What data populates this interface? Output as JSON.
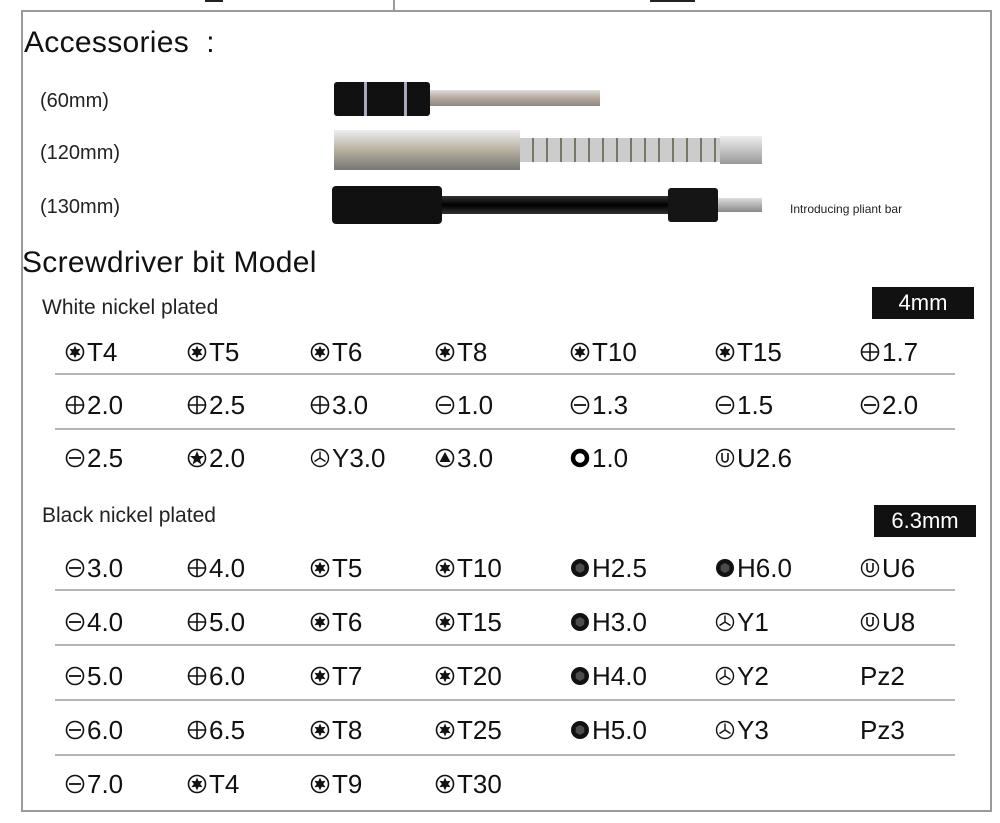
{
  "accessories": {
    "title": "Accessories  :",
    "items": [
      {
        "label": "(60mm)"
      },
      {
        "label": "(120mm)"
      },
      {
        "label": "(130mm)",
        "note": "Introducing pliant bar"
      }
    ]
  },
  "bits": {
    "title": "Screwdriver bit Model",
    "white": {
      "label": "White nickel plated",
      "size": "4mm",
      "rows": [
        [
          {
            "icon": "torx",
            "label": "T4"
          },
          {
            "icon": "torx",
            "label": "T5"
          },
          {
            "icon": "torx",
            "label": "T6"
          },
          {
            "icon": "torx",
            "label": "T8"
          },
          {
            "icon": "torx",
            "label": "T10"
          },
          {
            "icon": "torx",
            "label": "T15"
          },
          {
            "icon": "phillips",
            "label": "1.7"
          }
        ],
        [
          {
            "icon": "phillips",
            "label": "2.0"
          },
          {
            "icon": "phillips",
            "label": "2.5"
          },
          {
            "icon": "phillips",
            "label": "3.0"
          },
          {
            "icon": "slot",
            "label": "1.0"
          },
          {
            "icon": "slot",
            "label": "1.3"
          },
          {
            "icon": "slot",
            "label": "1.5"
          },
          {
            "icon": "slot",
            "label": "2.0"
          }
        ],
        [
          {
            "icon": "slot",
            "label": "2.5"
          },
          {
            "icon": "pentalobe",
            "label": "2.0"
          },
          {
            "icon": "triwing",
            "label": "Y3.0"
          },
          {
            "icon": "triangle",
            "label": "3.0"
          },
          {
            "icon": "ring",
            "label": "1.0"
          },
          {
            "icon": "u",
            "label": "U2.6"
          }
        ]
      ]
    },
    "black": {
      "label": "Black nickel plated",
      "size": "6.3mm",
      "rows": [
        [
          {
            "icon": "slot",
            "label": "3.0"
          },
          {
            "icon": "phillips",
            "label": "4.0"
          },
          {
            "icon": "torx",
            "label": "T5"
          },
          {
            "icon": "torx",
            "label": "T10"
          },
          {
            "icon": "hex",
            "label": "H2.5"
          },
          {
            "icon": "hex",
            "label": "H6.0"
          },
          {
            "icon": "u",
            "label": "U6"
          }
        ],
        [
          {
            "icon": "slot",
            "label": "4.0"
          },
          {
            "icon": "phillips",
            "label": "5.0"
          },
          {
            "icon": "torx",
            "label": "T6"
          },
          {
            "icon": "torx",
            "label": "T15"
          },
          {
            "icon": "hex",
            "label": "H3.0"
          },
          {
            "icon": "triwing",
            "label": "Y1"
          },
          {
            "icon": "u",
            "label": "U8"
          }
        ],
        [
          {
            "icon": "slot",
            "label": "5.0"
          },
          {
            "icon": "phillips",
            "label": "6.0"
          },
          {
            "icon": "torx",
            "label": "T7"
          },
          {
            "icon": "torx",
            "label": "T20"
          },
          {
            "icon": "hex",
            "label": "H4.0"
          },
          {
            "icon": "triwing",
            "label": "Y2"
          },
          {
            "icon": "none",
            "label": "Pz2"
          }
        ],
        [
          {
            "icon": "slot",
            "label": "6.0"
          },
          {
            "icon": "phillips",
            "label": "6.5"
          },
          {
            "icon": "torx",
            "label": "T8"
          },
          {
            "icon": "torx",
            "label": "T25"
          },
          {
            "icon": "hex",
            "label": "H5.0"
          },
          {
            "icon": "triwing",
            "label": "Y3"
          },
          {
            "icon": "none",
            "label": "Pz3"
          }
        ],
        [
          {
            "icon": "slot",
            "label": "7.0"
          },
          {
            "icon": "torx",
            "label": "T4"
          },
          {
            "icon": "torx",
            "label": "T9"
          },
          {
            "icon": "torx",
            "label": "T30"
          }
        ]
      ]
    }
  }
}
